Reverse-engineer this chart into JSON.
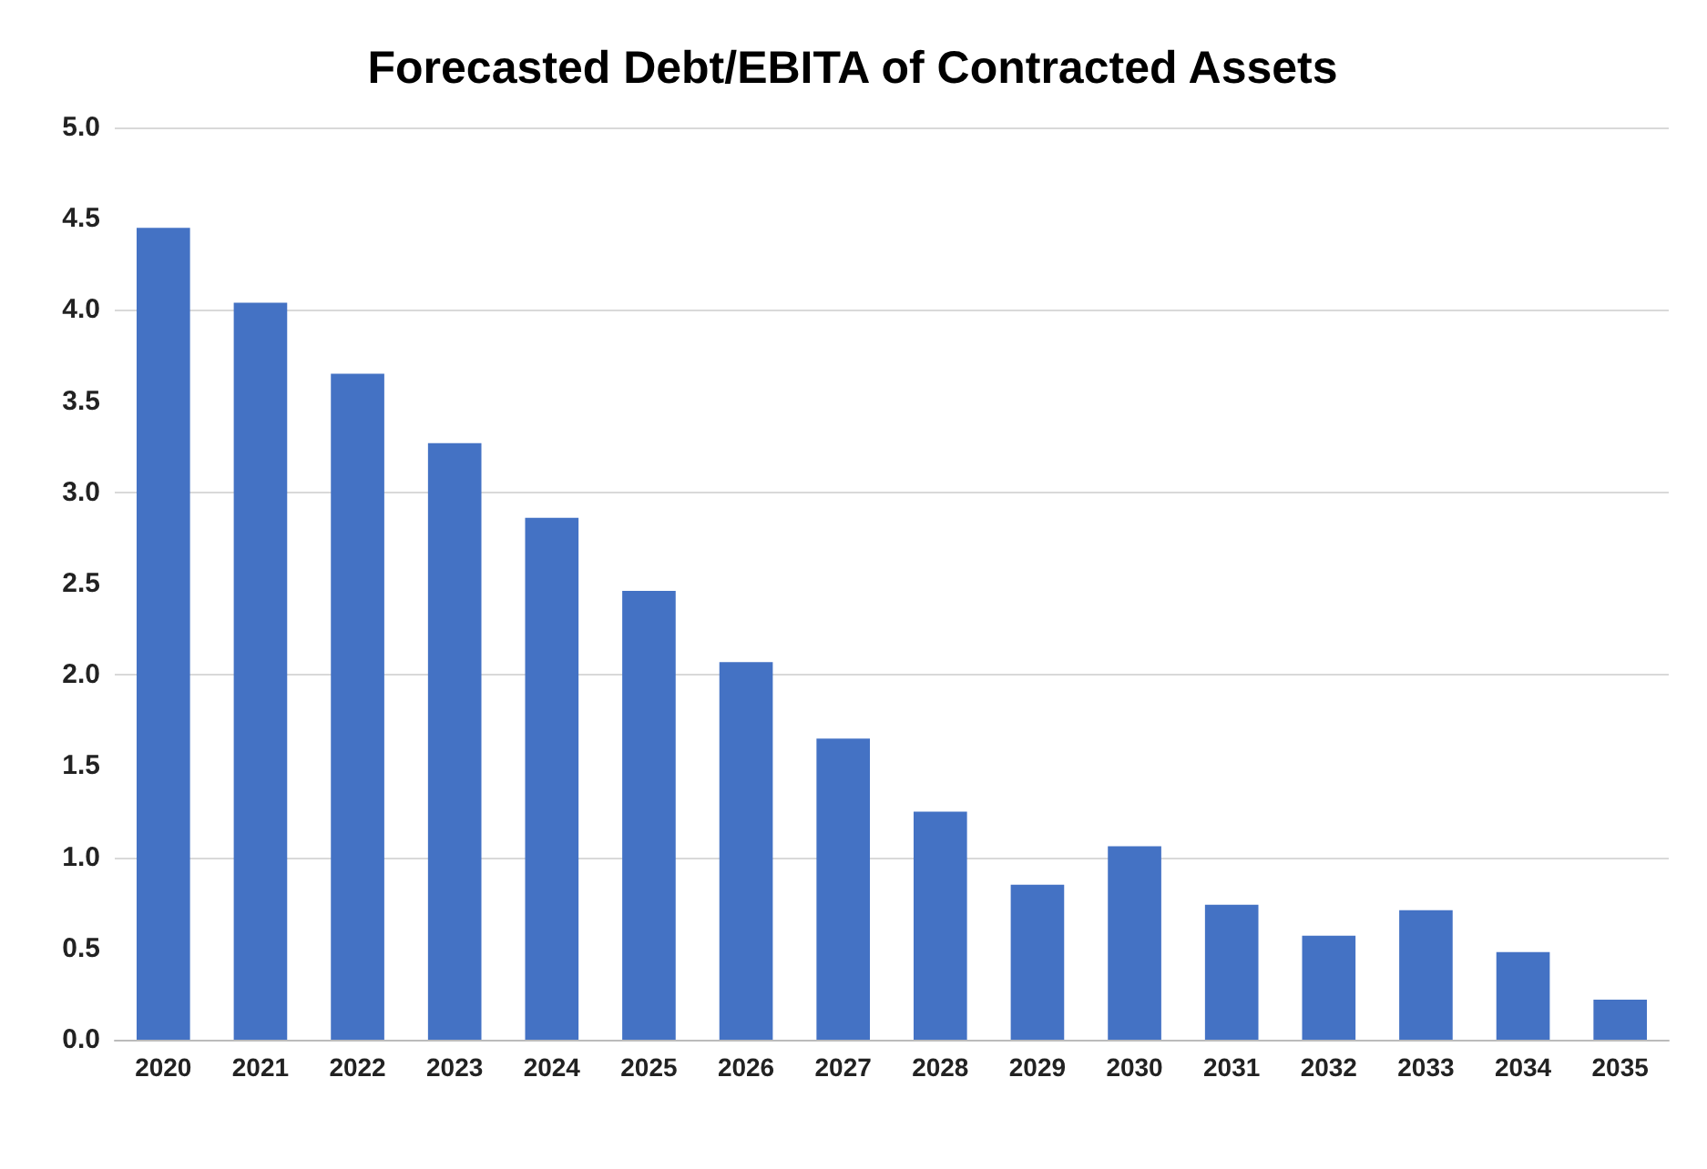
{
  "chart_data": {
    "type": "bar",
    "title": "Forecasted Debt/EBITA of Contracted Assets",
    "categories": [
      "2020",
      "2021",
      "2022",
      "2023",
      "2024",
      "2025",
      "2026",
      "2027",
      "2028",
      "2029",
      "2030",
      "2031",
      "2032",
      "2033",
      "2034",
      "2035"
    ],
    "values": [
      4.45,
      4.04,
      3.65,
      3.27,
      2.86,
      2.46,
      2.07,
      1.65,
      1.25,
      0.85,
      1.06,
      0.74,
      0.57,
      0.71,
      0.48,
      0.22
    ],
    "color": "#4472c4",
    "ylim": [
      0,
      5
    ],
    "yticks": [
      {
        "value": 0,
        "label": "0.0"
      },
      {
        "value": 0.5,
        "label": "0.5"
      },
      {
        "value": 1,
        "label": "1.0"
      },
      {
        "value": 1.5,
        "label": "1.5"
      },
      {
        "value": 2,
        "label": "2.0"
      },
      {
        "value": 2.5,
        "label": "2.5"
      },
      {
        "value": 3,
        "label": "3.0"
      },
      {
        "value": 3.5,
        "label": "3.5"
      },
      {
        "value": 4,
        "label": "4.0"
      },
      {
        "value": 4.5,
        "label": "4.5"
      },
      {
        "value": 5,
        "label": "5.0"
      }
    ],
    "grid": "y"
  }
}
